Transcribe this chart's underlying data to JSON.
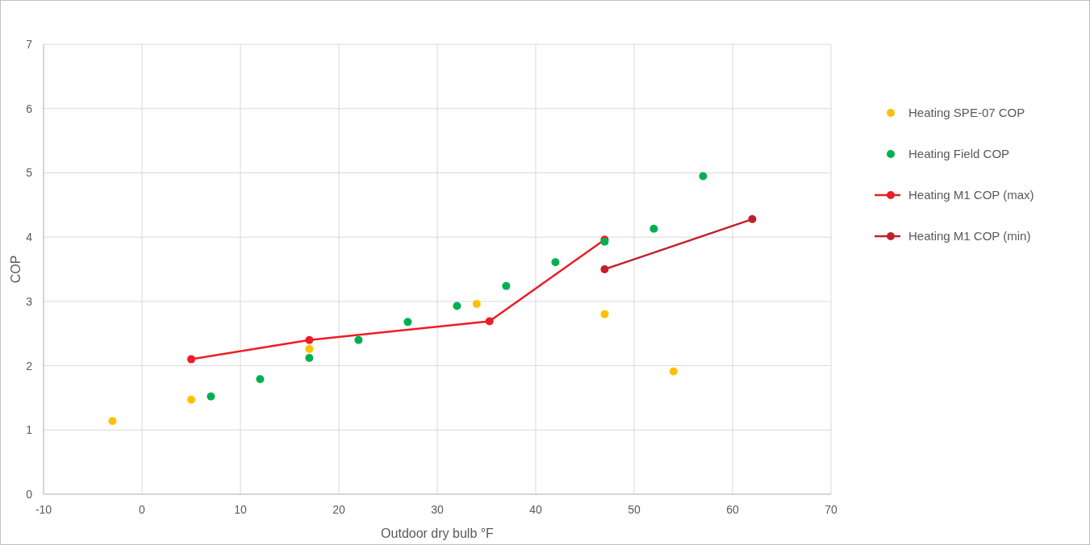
{
  "chart_data": {
    "type": "scatter",
    "xlabel": "Outdoor  dry bulb °F",
    "ylabel": "COP",
    "xlim": [
      -10,
      70
    ],
    "xticks": [
      -10,
      0,
      10,
      20,
      30,
      40,
      50,
      60,
      70
    ],
    "ylim": [
      0,
      7
    ],
    "yticks": [
      0,
      1,
      2,
      3,
      4,
      5,
      6,
      7
    ],
    "grid": true,
    "legend": "right",
    "marker": "circle",
    "series": [
      {
        "name": "Heating SPE-07 COP",
        "color": "#ffc000",
        "x": [
          -3,
          5,
          17,
          34,
          47,
          54
        ],
        "values": [
          1.14,
          1.47,
          2.26,
          2.96,
          2.8,
          1.91
        ]
      },
      {
        "name": "Heating Field COP",
        "color": "#00b050",
        "x": [
          7,
          12,
          17,
          22,
          27,
          32,
          37,
          42,
          47,
          52,
          57
        ],
        "values": [
          1.52,
          1.79,
          2.12,
          2.4,
          2.68,
          2.93,
          3.24,
          3.61,
          3.93,
          4.13,
          4.95
        ]
      },
      {
        "name": "Heating M1 COP (max)",
        "type": "line",
        "color": "#ee1c25",
        "x": [
          5,
          17,
          35.3,
          47
        ],
        "values": [
          2.1,
          2.4,
          2.69,
          3.96
        ]
      },
      {
        "name": "Heating M1 COP (min)",
        "type": "line",
        "color": "#c0202a",
        "x": [
          47,
          62
        ],
        "values": [
          3.5,
          4.28
        ]
      }
    ]
  }
}
